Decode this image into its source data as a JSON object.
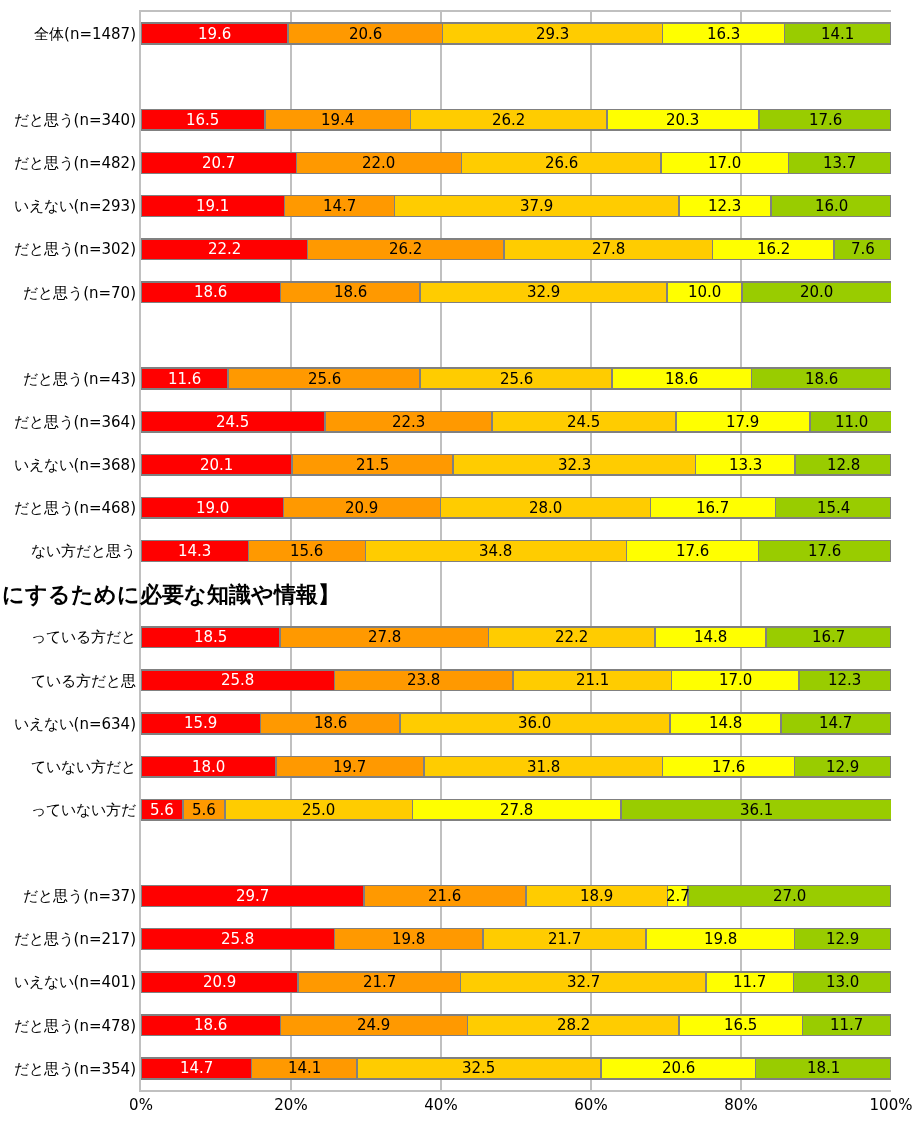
{
  "chart_data": {
    "type": "bar",
    "orientation": "horizontal",
    "stacked": true,
    "grid": "x",
    "categories": [
      "全体(n=1487)",
      null,
      "だと思う(n=340)",
      "だと思う(n=482)",
      "いえない(n=293)",
      "だと思う(n=302)",
      "だと思う(n=70)",
      null,
      "だと思う(n=43)",
      "だと思う(n=364)",
      "いえない(n=368)",
      "だと思う(n=468)",
      "ない方だと思う",
      null,
      "っている方だと",
      "ている方だと思",
      "いえない(n=634)",
      "ていない方だと",
      "っていない方だ",
      null,
      "だと思う(n=37)",
      "だと思う(n=217)",
      "いえない(n=401)",
      "だと思う(n=478)",
      "だと思う(n=354)"
    ],
    "series": [
      {
        "color": "#ff0000",
        "values": [
          19.6,
          null,
          16.5,
          20.7,
          19.1,
          22.2,
          18.6,
          null,
          11.6,
          24.5,
          20.1,
          19.0,
          14.3,
          null,
          18.5,
          25.8,
          15.9,
          18.0,
          5.6,
          null,
          29.7,
          25.8,
          20.9,
          18.6,
          14.7
        ],
        "value_labels": [
          "19.6",
          null,
          "16.5",
          "20.7",
          "19.1",
          "22.2",
          "18.6",
          null,
          "11.6",
          "24.5",
          "20.1",
          "19.0",
          "14.3",
          null,
          "18.5",
          "25.8",
          "15.9",
          "18.0",
          "5.6",
          null,
          "29.7",
          "25.8",
          "20.9",
          "18.6",
          "14.7"
        ]
      },
      {
        "color": "#ff9900",
        "values": [
          20.6,
          null,
          19.4,
          22.0,
          14.7,
          26.2,
          18.6,
          null,
          25.6,
          22.3,
          21.5,
          20.9,
          15.6,
          null,
          27.8,
          23.8,
          18.6,
          19.7,
          5.6,
          null,
          21.6,
          19.8,
          21.7,
          24.9,
          14.1
        ],
        "value_labels": [
          "20.6",
          null,
          "19.4",
          "22.0",
          "14.7",
          "26.2",
          "18.6",
          null,
          "25.6",
          "22.3",
          "21.5",
          "20.9",
          "15.6",
          null,
          "27.8",
          "23.8",
          "18.6",
          "19.7",
          "5.6",
          null,
          "21.6",
          "19.8",
          "21.7",
          "24.9",
          "14.1"
        ]
      },
      {
        "color": "#ffcc00",
        "values": [
          29.3,
          null,
          26.2,
          26.6,
          37.9,
          27.8,
          32.9,
          null,
          25.6,
          24.5,
          32.3,
          28.0,
          34.8,
          null,
          22.2,
          21.1,
          36.0,
          31.8,
          25.0,
          null,
          18.9,
          21.7,
          32.7,
          28.2,
          32.5
        ],
        "value_labels": [
          "29.3",
          null,
          "26.2",
          "26.6",
          "37.9",
          "27.8",
          "32.9",
          null,
          "25.6",
          "24.5",
          "32.3",
          "28.0",
          "34.8",
          null,
          "22.2",
          "21.1",
          "36.0",
          "31.8",
          "25.0",
          null,
          "18.9",
          "21.7",
          "32.7",
          "28.2",
          "32.5"
        ]
      },
      {
        "color": "#ffff00",
        "values": [
          16.3,
          null,
          20.3,
          17.0,
          12.3,
          16.2,
          10.0,
          null,
          18.6,
          17.9,
          13.3,
          16.7,
          17.6,
          null,
          14.8,
          17.0,
          14.8,
          17.6,
          27.8,
          null,
          2.7,
          19.8,
          11.7,
          16.5,
          20.6
        ],
        "value_labels": [
          "16.3",
          null,
          "20.3",
          "17.0",
          "12.3",
          "16.2",
          "10.0",
          null,
          "18.6",
          "17.9",
          "13.3",
          "16.7",
          "17.6",
          null,
          "14.8",
          "17.0",
          "14.8",
          "17.6",
          "27.8",
          null,
          "2.7",
          "19.8",
          "11.7",
          "16.5",
          "20.6"
        ]
      },
      {
        "color": "#99cc00",
        "values": [
          14.1,
          null,
          17.6,
          13.7,
          16.0,
          7.6,
          20.0,
          null,
          18.6,
          11.0,
          12.8,
          15.4,
          17.6,
          null,
          16.7,
          12.3,
          14.7,
          12.9,
          36.1,
          null,
          27.0,
          12.9,
          13.0,
          11.7,
          18.1
        ],
        "value_labels": [
          "14.1",
          null,
          "17.6",
          "13.7",
          "16.0",
          "7.6",
          "20.0",
          null,
          "18.6",
          "11.0",
          "12.8",
          "15.4",
          "17.6",
          null,
          "16.7",
          "12.3",
          "14.7",
          "12.9",
          "36.1",
          null,
          "27.0",
          "12.9",
          "13.0",
          "11.7",
          "18.1"
        ]
      }
    ],
    "xlim": [
      0,
      100
    ],
    "xticks": [
      {
        "value": 0,
        "label": "0%"
      },
      {
        "value": 20,
        "label": "20%"
      },
      {
        "value": 40,
        "label": "40%"
      },
      {
        "value": 60,
        "label": "60%"
      },
      {
        "value": 80,
        "label": "80%"
      },
      {
        "value": 100,
        "label": "100%"
      }
    ],
    "annotations": [
      "にするために必要な知識や情報】"
    ]
  }
}
